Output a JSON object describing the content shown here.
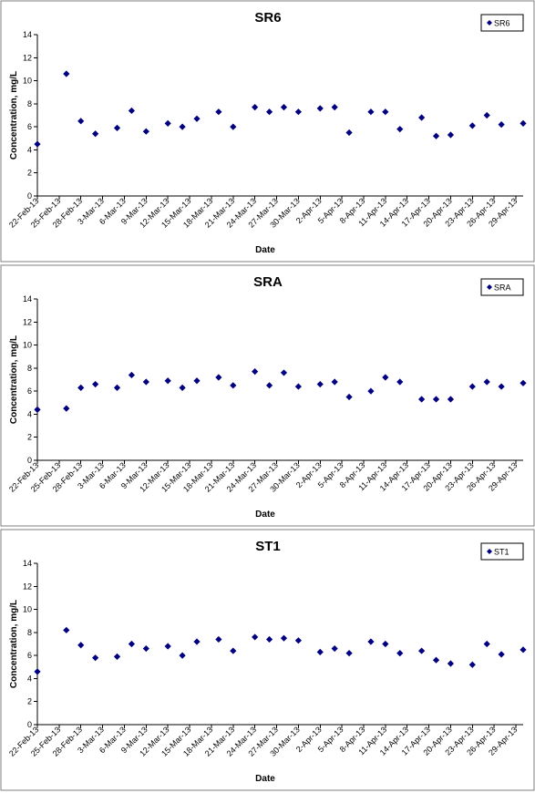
{
  "chart_data": [
    {
      "type": "scatter",
      "title": "SR6",
      "xlabel": "Date",
      "ylabel": "Concentration, mg/L",
      "ylim": [
        0,
        14
      ],
      "yticks": [
        0,
        2,
        4,
        6,
        8,
        10,
        12,
        14
      ],
      "xlim": [
        "22-Feb-13",
        "30-Apr-13"
      ],
      "xtick_labels": [
        "22-Feb-13",
        "25-Feb-13",
        "28-Feb-13",
        "3-Mar-13",
        "6-Mar-13",
        "9-Mar-13",
        "12-Mar-13",
        "15-Mar-13",
        "18-Mar-13",
        "21-Mar-13",
        "24-Mar-13",
        "27-Mar-13",
        "30-Mar-13",
        "2-Apr-13",
        "5-Apr-13",
        "8-Apr-13",
        "11-Apr-13",
        "14-Apr-13",
        "17-Apr-13",
        "20-Apr-13",
        "23-Apr-13",
        "26-Apr-13",
        "29-Apr-13"
      ],
      "grid": false,
      "legend_position": "top-right",
      "marker_color": "#000080",
      "series": [
        {
          "name": "SR6",
          "points": [
            {
              "x": "22-Feb-13",
              "y": 4.5
            },
            {
              "x": "26-Feb-13",
              "y": 10.6
            },
            {
              "x": "28-Feb-13",
              "y": 6.5
            },
            {
              "x": "2-Mar-13",
              "y": 5.4
            },
            {
              "x": "5-Mar-13",
              "y": 5.9
            },
            {
              "x": "7-Mar-13",
              "y": 7.4
            },
            {
              "x": "9-Mar-13",
              "y": 5.6
            },
            {
              "x": "12-Mar-13",
              "y": 6.3
            },
            {
              "x": "14-Mar-13",
              "y": 6.0
            },
            {
              "x": "16-Mar-13",
              "y": 6.7
            },
            {
              "x": "19-Mar-13",
              "y": 7.3
            },
            {
              "x": "21-Mar-13",
              "y": 6.0
            },
            {
              "x": "24-Mar-13",
              "y": 7.7
            },
            {
              "x": "26-Mar-13",
              "y": 7.3
            },
            {
              "x": "28-Mar-13",
              "y": 7.7
            },
            {
              "x": "30-Mar-13",
              "y": 7.3
            },
            {
              "x": "2-Apr-13",
              "y": 7.6
            },
            {
              "x": "4-Apr-13",
              "y": 7.7
            },
            {
              "x": "6-Apr-13",
              "y": 5.5
            },
            {
              "x": "9-Apr-13",
              "y": 7.3
            },
            {
              "x": "11-Apr-13",
              "y": 7.3
            },
            {
              "x": "13-Apr-13",
              "y": 5.8
            },
            {
              "x": "16-Apr-13",
              "y": 6.8
            },
            {
              "x": "18-Apr-13",
              "y": 5.2
            },
            {
              "x": "20-Apr-13",
              "y": 5.3
            },
            {
              "x": "23-Apr-13",
              "y": 6.1
            },
            {
              "x": "25-Apr-13",
              "y": 7.0
            },
            {
              "x": "27-Apr-13",
              "y": 6.2
            },
            {
              "x": "30-Apr-13",
              "y": 6.3
            }
          ]
        }
      ]
    },
    {
      "type": "scatter",
      "title": "SRA",
      "xlabel": "Date",
      "ylabel": "Concentration, mg/L",
      "ylim": [
        0,
        14
      ],
      "yticks": [
        0,
        2,
        4,
        6,
        8,
        10,
        12,
        14
      ],
      "xlim": [
        "22-Feb-13",
        "30-Apr-13"
      ],
      "xtick_labels": [
        "22-Feb-13",
        "25-Feb-13",
        "28-Feb-13",
        "3-Mar-13",
        "6-Mar-13",
        "9-Mar-13",
        "12-Mar-13",
        "15-Mar-13",
        "18-Mar-13",
        "21-Mar-13",
        "24-Mar-13",
        "27-Mar-13",
        "30-Mar-13",
        "2-Apr-13",
        "5-Apr-13",
        "8-Apr-13",
        "11-Apr-13",
        "14-Apr-13",
        "17-Apr-13",
        "20-Apr-13",
        "23-Apr-13",
        "26-Apr-13",
        "29-Apr-13"
      ],
      "grid": false,
      "legend_position": "top-right",
      "marker_color": "#000080",
      "series": [
        {
          "name": "SRA",
          "points": [
            {
              "x": "22-Feb-13",
              "y": 4.4
            },
            {
              "x": "26-Feb-13",
              "y": 4.5
            },
            {
              "x": "28-Feb-13",
              "y": 6.3
            },
            {
              "x": "2-Mar-13",
              "y": 6.6
            },
            {
              "x": "5-Mar-13",
              "y": 6.3
            },
            {
              "x": "7-Mar-13",
              "y": 7.4
            },
            {
              "x": "9-Mar-13",
              "y": 6.8
            },
            {
              "x": "12-Mar-13",
              "y": 6.9
            },
            {
              "x": "14-Mar-13",
              "y": 6.3
            },
            {
              "x": "16-Mar-13",
              "y": 6.9
            },
            {
              "x": "19-Mar-13",
              "y": 7.2
            },
            {
              "x": "21-Mar-13",
              "y": 6.5
            },
            {
              "x": "24-Mar-13",
              "y": 7.7
            },
            {
              "x": "26-Mar-13",
              "y": 6.5
            },
            {
              "x": "28-Mar-13",
              "y": 7.6
            },
            {
              "x": "30-Mar-13",
              "y": 6.4
            },
            {
              "x": "2-Apr-13",
              "y": 6.6
            },
            {
              "x": "4-Apr-13",
              "y": 6.8
            },
            {
              "x": "6-Apr-13",
              "y": 5.5
            },
            {
              "x": "9-Apr-13",
              "y": 6.0
            },
            {
              "x": "11-Apr-13",
              "y": 7.2
            },
            {
              "x": "13-Apr-13",
              "y": 6.8
            },
            {
              "x": "16-Apr-13",
              "y": 5.3
            },
            {
              "x": "18-Apr-13",
              "y": 5.3
            },
            {
              "x": "20-Apr-13",
              "y": 5.3
            },
            {
              "x": "23-Apr-13",
              "y": 6.4
            },
            {
              "x": "25-Apr-13",
              "y": 6.8
            },
            {
              "x": "27-Apr-13",
              "y": 6.4
            },
            {
              "x": "30-Apr-13",
              "y": 6.7
            }
          ]
        }
      ]
    },
    {
      "type": "scatter",
      "title": "ST1",
      "xlabel": "Date",
      "ylabel": "Concentration, mg/L",
      "ylim": [
        0,
        14
      ],
      "yticks": [
        0,
        2,
        4,
        6,
        8,
        10,
        12,
        14
      ],
      "xlim": [
        "22-Feb-13",
        "30-Apr-13"
      ],
      "xtick_labels": [
        "22-Feb-13",
        "25-Feb-13",
        "28-Feb-13",
        "3-Mar-13",
        "6-Mar-13",
        "9-Mar-13",
        "12-Mar-13",
        "15-Mar-13",
        "18-Mar-13",
        "21-Mar-13",
        "24-Mar-13",
        "27-Mar-13",
        "30-Mar-13",
        "2-Apr-13",
        "5-Apr-13",
        "8-Apr-13",
        "11-Apr-13",
        "14-Apr-13",
        "17-Apr-13",
        "20-Apr-13",
        "23-Apr-13",
        "26-Apr-13",
        "29-Apr-13"
      ],
      "grid": false,
      "legend_position": "top-right",
      "marker_color": "#000080",
      "series": [
        {
          "name": "ST1",
          "points": [
            {
              "x": "22-Feb-13",
              "y": 4.6
            },
            {
              "x": "26-Feb-13",
              "y": 8.2
            },
            {
              "x": "28-Feb-13",
              "y": 6.9
            },
            {
              "x": "2-Mar-13",
              "y": 5.8
            },
            {
              "x": "5-Mar-13",
              "y": 5.9
            },
            {
              "x": "7-Mar-13",
              "y": 7.0
            },
            {
              "x": "9-Mar-13",
              "y": 6.6
            },
            {
              "x": "12-Mar-13",
              "y": 6.8
            },
            {
              "x": "14-Mar-13",
              "y": 6.0
            },
            {
              "x": "16-Mar-13",
              "y": 7.2
            },
            {
              "x": "19-Mar-13",
              "y": 7.4
            },
            {
              "x": "21-Mar-13",
              "y": 6.4
            },
            {
              "x": "24-Mar-13",
              "y": 7.6
            },
            {
              "x": "26-Mar-13",
              "y": 7.4
            },
            {
              "x": "28-Mar-13",
              "y": 7.5
            },
            {
              "x": "30-Mar-13",
              "y": 7.3
            },
            {
              "x": "2-Apr-13",
              "y": 6.3
            },
            {
              "x": "4-Apr-13",
              "y": 6.6
            },
            {
              "x": "6-Apr-13",
              "y": 6.2
            },
            {
              "x": "9-Apr-13",
              "y": 7.2
            },
            {
              "x": "11-Apr-13",
              "y": 7.0
            },
            {
              "x": "13-Apr-13",
              "y": 6.2
            },
            {
              "x": "16-Apr-13",
              "y": 6.4
            },
            {
              "x": "18-Apr-13",
              "y": 5.6
            },
            {
              "x": "20-Apr-13",
              "y": 5.3
            },
            {
              "x": "23-Apr-13",
              "y": 5.2
            },
            {
              "x": "25-Apr-13",
              "y": 7.0
            },
            {
              "x": "27-Apr-13",
              "y": 6.1
            },
            {
              "x": "30-Apr-13",
              "y": 6.5
            }
          ]
        }
      ]
    }
  ]
}
